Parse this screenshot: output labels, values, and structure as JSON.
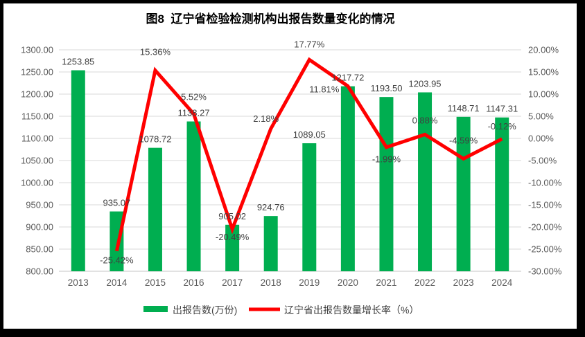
{
  "title": "图8  辽宁省检验检测机构出报告数量变化的情况",
  "chart_data": {
    "type": "bar",
    "subtype": "combo-bar-line-dual-axis",
    "categories": [
      "2013",
      "2014",
      "2015",
      "2016",
      "2017",
      "2018",
      "2019",
      "2020",
      "2021",
      "2022",
      "2023",
      "2024"
    ],
    "series": [
      {
        "name": "出报告数(万份)",
        "type": "bar",
        "axis": "left",
        "color": "#00AE50",
        "values": [
          1253.85,
          935.07,
          1078.72,
          1138.27,
          905.02,
          924.76,
          1089.05,
          1217.72,
          1193.5,
          1203.95,
          1148.71,
          1147.31
        ],
        "labels": [
          "1253.85",
          "935.07",
          "1078.72",
          "1138.27",
          "905.02",
          "924.76",
          "1089.05",
          "1217.72",
          "1193.50",
          "1203.95",
          "1148.71",
          "1147.31"
        ]
      },
      {
        "name": "辽宁省出报告数量增长率（%）",
        "type": "line",
        "axis": "right",
        "color": "#FF0000",
        "values": [
          null,
          -25.42,
          15.36,
          5.52,
          -20.49,
          2.18,
          17.77,
          11.81,
          -1.99,
          0.88,
          -4.59,
          -0.12
        ],
        "labels": [
          null,
          "-25.42%",
          "15.36%",
          "5.52%",
          "-20.49%",
          "2.18%",
          "17.77%",
          "11.81%",
          "-1.99%",
          "0.88%",
          "-4.59%",
          "-0.12%"
        ]
      }
    ],
    "left_axis": {
      "min": 800,
      "max": 1300,
      "step": 50,
      "tick_format": "0.00"
    },
    "right_axis": {
      "min": -30,
      "max": 20,
      "step": 5,
      "tick_format": "0.00%"
    },
    "grid": true,
    "legend_position": "bottom"
  },
  "colors": {
    "bar": "#00AE50",
    "line": "#FF0000",
    "gridline": "#D9D9D9",
    "axis_text": "#595959",
    "data_label": "#404040",
    "title_text": "#000000",
    "frame_border": "#000000"
  }
}
